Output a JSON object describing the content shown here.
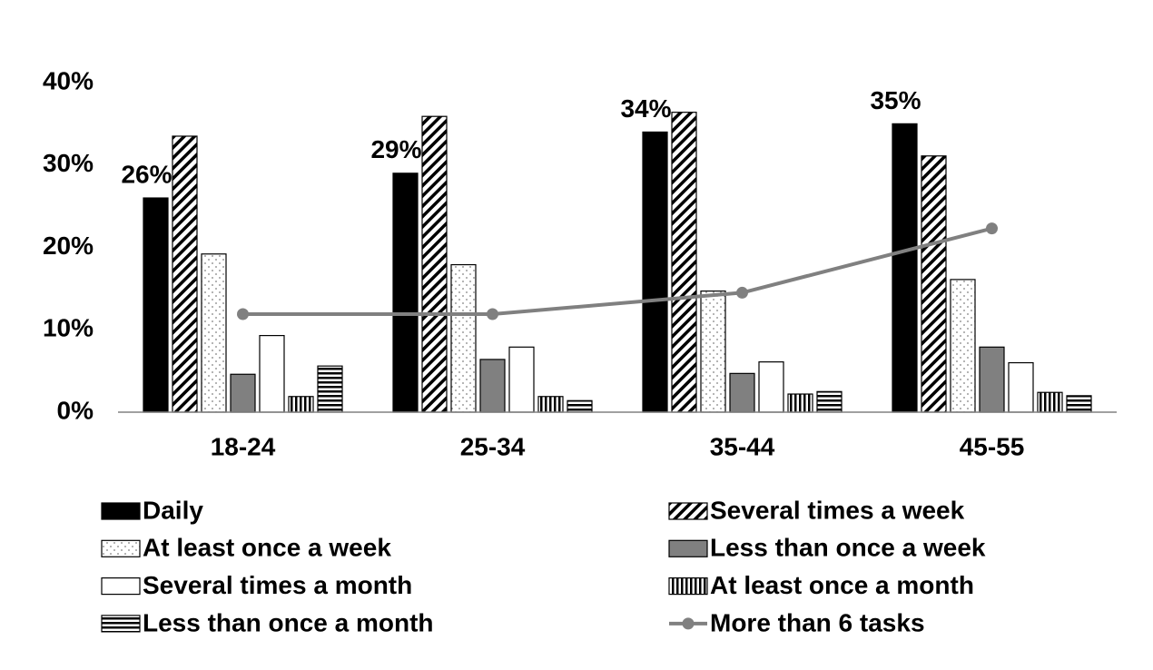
{
  "chart_data": {
    "type": "bar",
    "categories": [
      "18-24",
      "25-34",
      "35-44",
      "45-55"
    ],
    "ylim": [
      0,
      40
    ],
    "yticks": [
      {
        "value": 0,
        "label": "0%"
      },
      {
        "value": 10,
        "label": "10%"
      },
      {
        "value": 20,
        "label": "20%"
      },
      {
        "value": 30,
        "label": "30%"
      },
      {
        "value": 40,
        "label": "40%"
      }
    ],
    "grid": false,
    "series": [
      {
        "name": "Daily",
        "color": "#000000",
        "pattern": "solid",
        "values": [
          26,
          29,
          34,
          35
        ],
        "value_labels": [
          "26%",
          "29%",
          "34%",
          "35%"
        ]
      },
      {
        "name": "Several times a week",
        "color": "#000000",
        "pattern": "diagonal",
        "values": [
          33.5,
          35.9,
          36.4,
          31.1
        ]
      },
      {
        "name": "At least once a week",
        "color": "#808080",
        "pattern": "dots",
        "values": [
          19.2,
          17.9,
          14.7,
          16.1
        ]
      },
      {
        "name": "Less than once a week",
        "color": "#808080",
        "pattern": "solid",
        "values": [
          4.6,
          6.4,
          4.7,
          7.9
        ]
      },
      {
        "name": "Several times a month",
        "color": "#ffffff",
        "pattern": "solid",
        "values": [
          9.3,
          7.9,
          6.1,
          6.0
        ]
      },
      {
        "name": "At least once a month",
        "color": "#000000",
        "pattern": "vertical",
        "values": [
          1.9,
          1.9,
          2.2,
          2.4
        ]
      },
      {
        "name": "Less than once a month",
        "color": "#000000",
        "pattern": "horizontal",
        "values": [
          5.6,
          1.4,
          2.5,
          2.0
        ]
      },
      {
        "name": "More than 6 tasks",
        "type": "line",
        "color": "#808080",
        "values": [
          11.9,
          11.9,
          14.5,
          22.3
        ]
      }
    ]
  }
}
